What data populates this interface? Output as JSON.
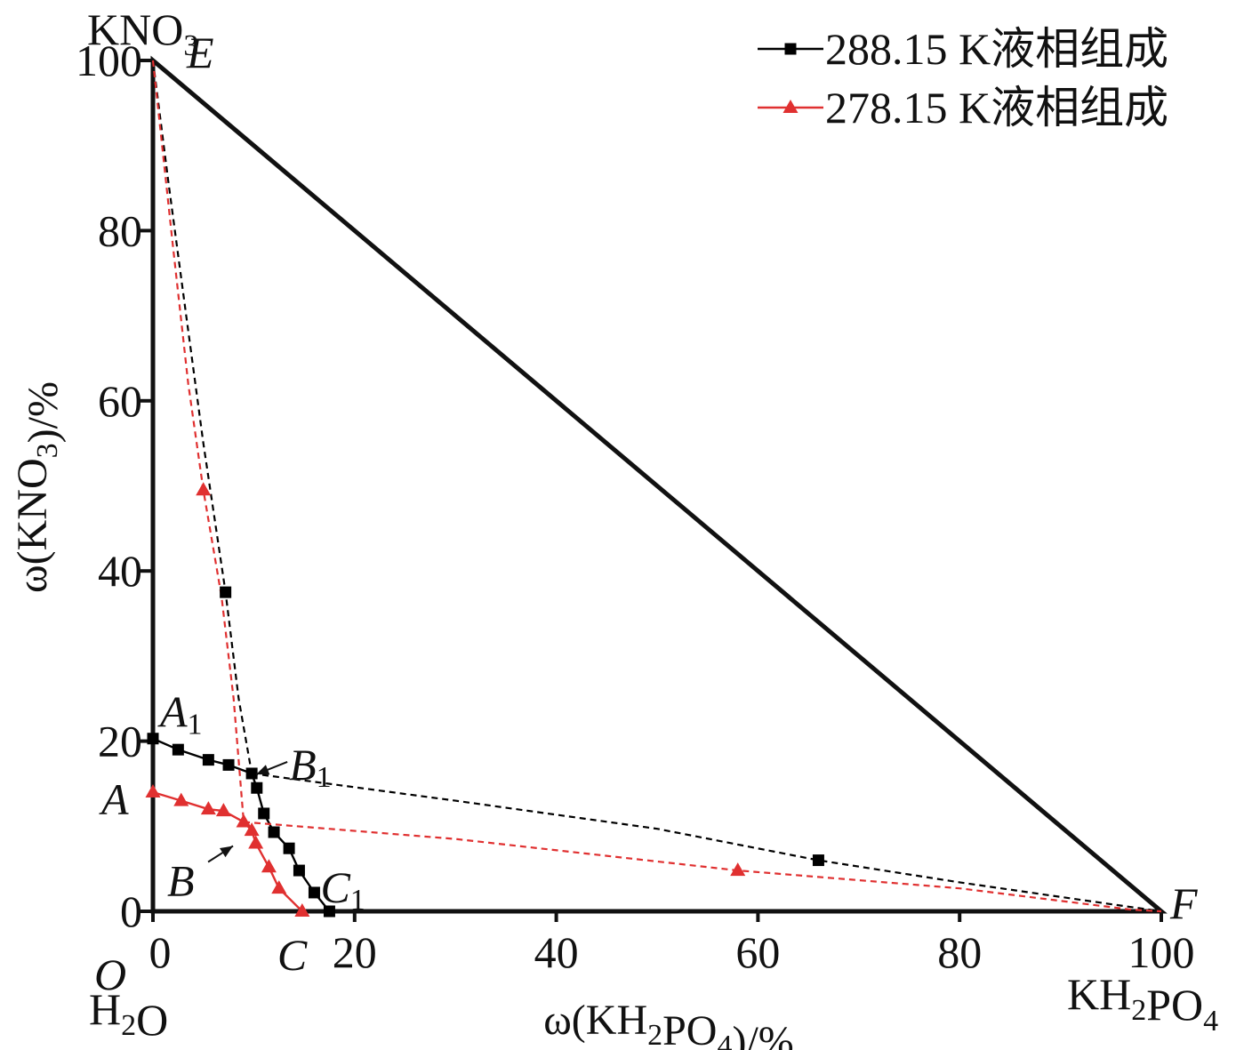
{
  "chart_data": {
    "type": "line",
    "xlabel": "ω(KH2PO4)/%",
    "ylabel": "ω(KNO3)/%",
    "xlim": [
      0,
      100
    ],
    "ylim": [
      0,
      100
    ],
    "x_ticks": [
      "0",
      "20",
      "40",
      "60",
      "80",
      "100"
    ],
    "y_ticks": [
      "0",
      "20",
      "40",
      "60",
      "80",
      "100"
    ],
    "grid": false,
    "legend_position": "top-right",
    "corner_labels": {
      "top": "KNO3",
      "bottom_left": "H2O",
      "bottom_right": "KH2PO4"
    },
    "triangle": [
      [
        0,
        100
      ],
      [
        0,
        0
      ],
      [
        100,
        0
      ]
    ],
    "point_labels": [
      {
        "label": "E",
        "x": 0,
        "y": 100
      },
      {
        "label": "F",
        "x": 100,
        "y": 0
      },
      {
        "label": "O",
        "x": 0,
        "y": 0
      },
      {
        "label": "A",
        "x": 0,
        "y": 14
      },
      {
        "label": "A1",
        "x": 0,
        "y": 20.3
      },
      {
        "label": "B",
        "x": 9,
        "y": 10.5
      },
      {
        "label": "B1",
        "x": 9.8,
        "y": 16.2
      },
      {
        "label": "C",
        "x": 14.8,
        "y": 0
      },
      {
        "label": "C1",
        "x": 17.5,
        "y": 0
      }
    ],
    "series": [
      {
        "name": "288.15 K液相组成",
        "color": "#000000",
        "marker": "square",
        "solid_segments": [
          [
            [
              0,
              20.3
            ],
            [
              2.5,
              19
            ],
            [
              5.5,
              17.8
            ],
            [
              7.5,
              17.2
            ],
            [
              9.8,
              16.2
            ]
          ],
          [
            [
              9.8,
              16.2
            ],
            [
              10.3,
              14.5
            ],
            [
              11,
              11.5
            ],
            [
              12,
              9.3
            ],
            [
              13.5,
              7.4
            ],
            [
              14.5,
              4.8
            ],
            [
              16,
              2.2
            ],
            [
              17.5,
              0
            ]
          ]
        ],
        "dashed_segments": [
          [
            [
              0,
              100
            ],
            [
              1.5,
              86
            ],
            [
              3.3,
              70
            ],
            [
              5,
              55
            ],
            [
              7.2,
              37.5
            ],
            [
              8.5,
              25
            ],
            [
              9.8,
              16.2
            ]
          ],
          [
            [
              9.8,
              16.2
            ],
            [
              30,
              13
            ],
            [
              50,
              9.7
            ],
            [
              66,
              6
            ],
            [
              80,
              3.4
            ],
            [
              97,
              0.5
            ],
            [
              100,
              0
            ]
          ]
        ],
        "markers": [
          [
            0,
            20.3
          ],
          [
            2.5,
            19
          ],
          [
            5.5,
            17.8
          ],
          [
            7.5,
            17.2
          ],
          [
            9.8,
            16.2
          ],
          [
            10.3,
            14.5
          ],
          [
            11,
            11.5
          ],
          [
            12,
            9.3
          ],
          [
            13.5,
            7.4
          ],
          [
            14.5,
            4.8
          ],
          [
            16,
            2.2
          ],
          [
            17.5,
            0
          ],
          [
            7.2,
            37.5
          ],
          [
            66,
            6
          ]
        ]
      },
      {
        "name": "278.15 K液相组成",
        "color": "#e03030",
        "marker": "triangle",
        "solid_segments": [
          [
            [
              0,
              14
            ],
            [
              2.8,
              13
            ],
            [
              5.5,
              12
            ],
            [
              7,
              11.8
            ],
            [
              9,
              10.5
            ]
          ],
          [
            [
              9,
              10.5
            ],
            [
              9.8,
              9.5
            ],
            [
              10.2,
              8
            ],
            [
              11.5,
              5.2
            ],
            [
              12.5,
              2.7
            ],
            [
              14.8,
              0
            ]
          ]
        ],
        "dashed_segments": [
          [
            [
              0,
              100
            ],
            [
              2,
              78
            ],
            [
              3.5,
              62
            ],
            [
              5,
              49.5
            ],
            [
              6.8,
              37
            ],
            [
              8,
              25
            ],
            [
              9,
              10.5
            ]
          ],
          [
            [
              9,
              10.5
            ],
            [
              30,
              8.5
            ],
            [
              58,
              4.8
            ],
            [
              80,
              2.7
            ],
            [
              97,
              0.2
            ],
            [
              100,
              0
            ]
          ]
        ],
        "markers": [
          [
            0,
            14
          ],
          [
            2.8,
            13
          ],
          [
            5.5,
            12
          ],
          [
            7,
            11.8
          ],
          [
            9,
            10.5
          ],
          [
            9.8,
            9.5
          ],
          [
            10.2,
            8
          ],
          [
            11.5,
            5.2
          ],
          [
            12.5,
            2.7
          ],
          [
            14.8,
            0
          ],
          [
            5,
            49.5
          ],
          [
            58,
            4.8
          ]
        ]
      }
    ]
  }
}
